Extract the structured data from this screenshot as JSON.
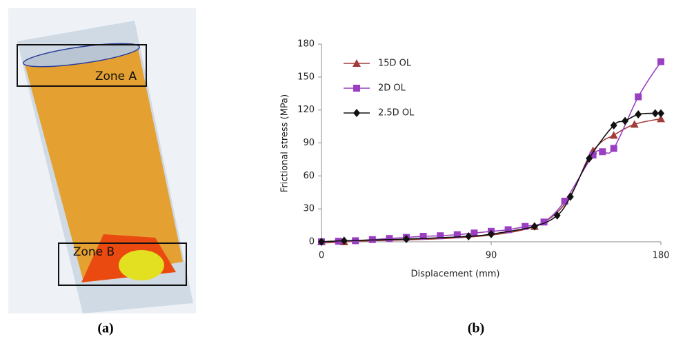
{
  "panel_a": {
    "zone_a": "Zone A",
    "zone_b": "Zone B",
    "caption": "(a)"
  },
  "panel_b_caption": "(b)",
  "chart_data": {
    "type": "line",
    "xlabel": "Displacement (mm)",
    "ylabel": "Frictional stress (MPa)",
    "xlim": [
      0,
      180
    ],
    "ylim": [
      0,
      180
    ],
    "xticks": [
      0,
      90,
      180
    ],
    "yticks": [
      0,
      30,
      60,
      90,
      120,
      150,
      180
    ],
    "grid": false,
    "legend": "upper left",
    "series": [
      {
        "name": "15D OL",
        "color": "#a13c3a",
        "marker": "triangle",
        "x": [
          0,
          12,
          113,
          144,
          155,
          166,
          180
        ],
        "values": [
          0,
          0,
          14,
          83,
          97,
          107,
          112
        ]
      },
      {
        "name": "2D OL",
        "color": "#9b3fc2",
        "marker": "square",
        "x": [
          0,
          9,
          18,
          27,
          36,
          45,
          54,
          63,
          72,
          81,
          90,
          99,
          108,
          118,
          129,
          144,
          149,
          155,
          168,
          180
        ],
        "values": [
          0,
          0.5,
          1,
          2,
          3,
          4,
          5,
          5.5,
          6.5,
          8,
          9.5,
          11,
          14,
          18,
          37,
          79,
          82,
          85,
          132,
          164
        ]
      },
      {
        "name": "2.5D OL",
        "color": "#111111",
        "marker": "diamond",
        "x": [
          0,
          12,
          45,
          78,
          90,
          113,
          125,
          132,
          142,
          155,
          161,
          168,
          177,
          180
        ],
        "values": [
          0,
          1,
          2.5,
          5,
          7,
          14,
          24,
          41,
          76,
          106,
          110,
          116,
          117,
          117
        ]
      }
    ]
  }
}
